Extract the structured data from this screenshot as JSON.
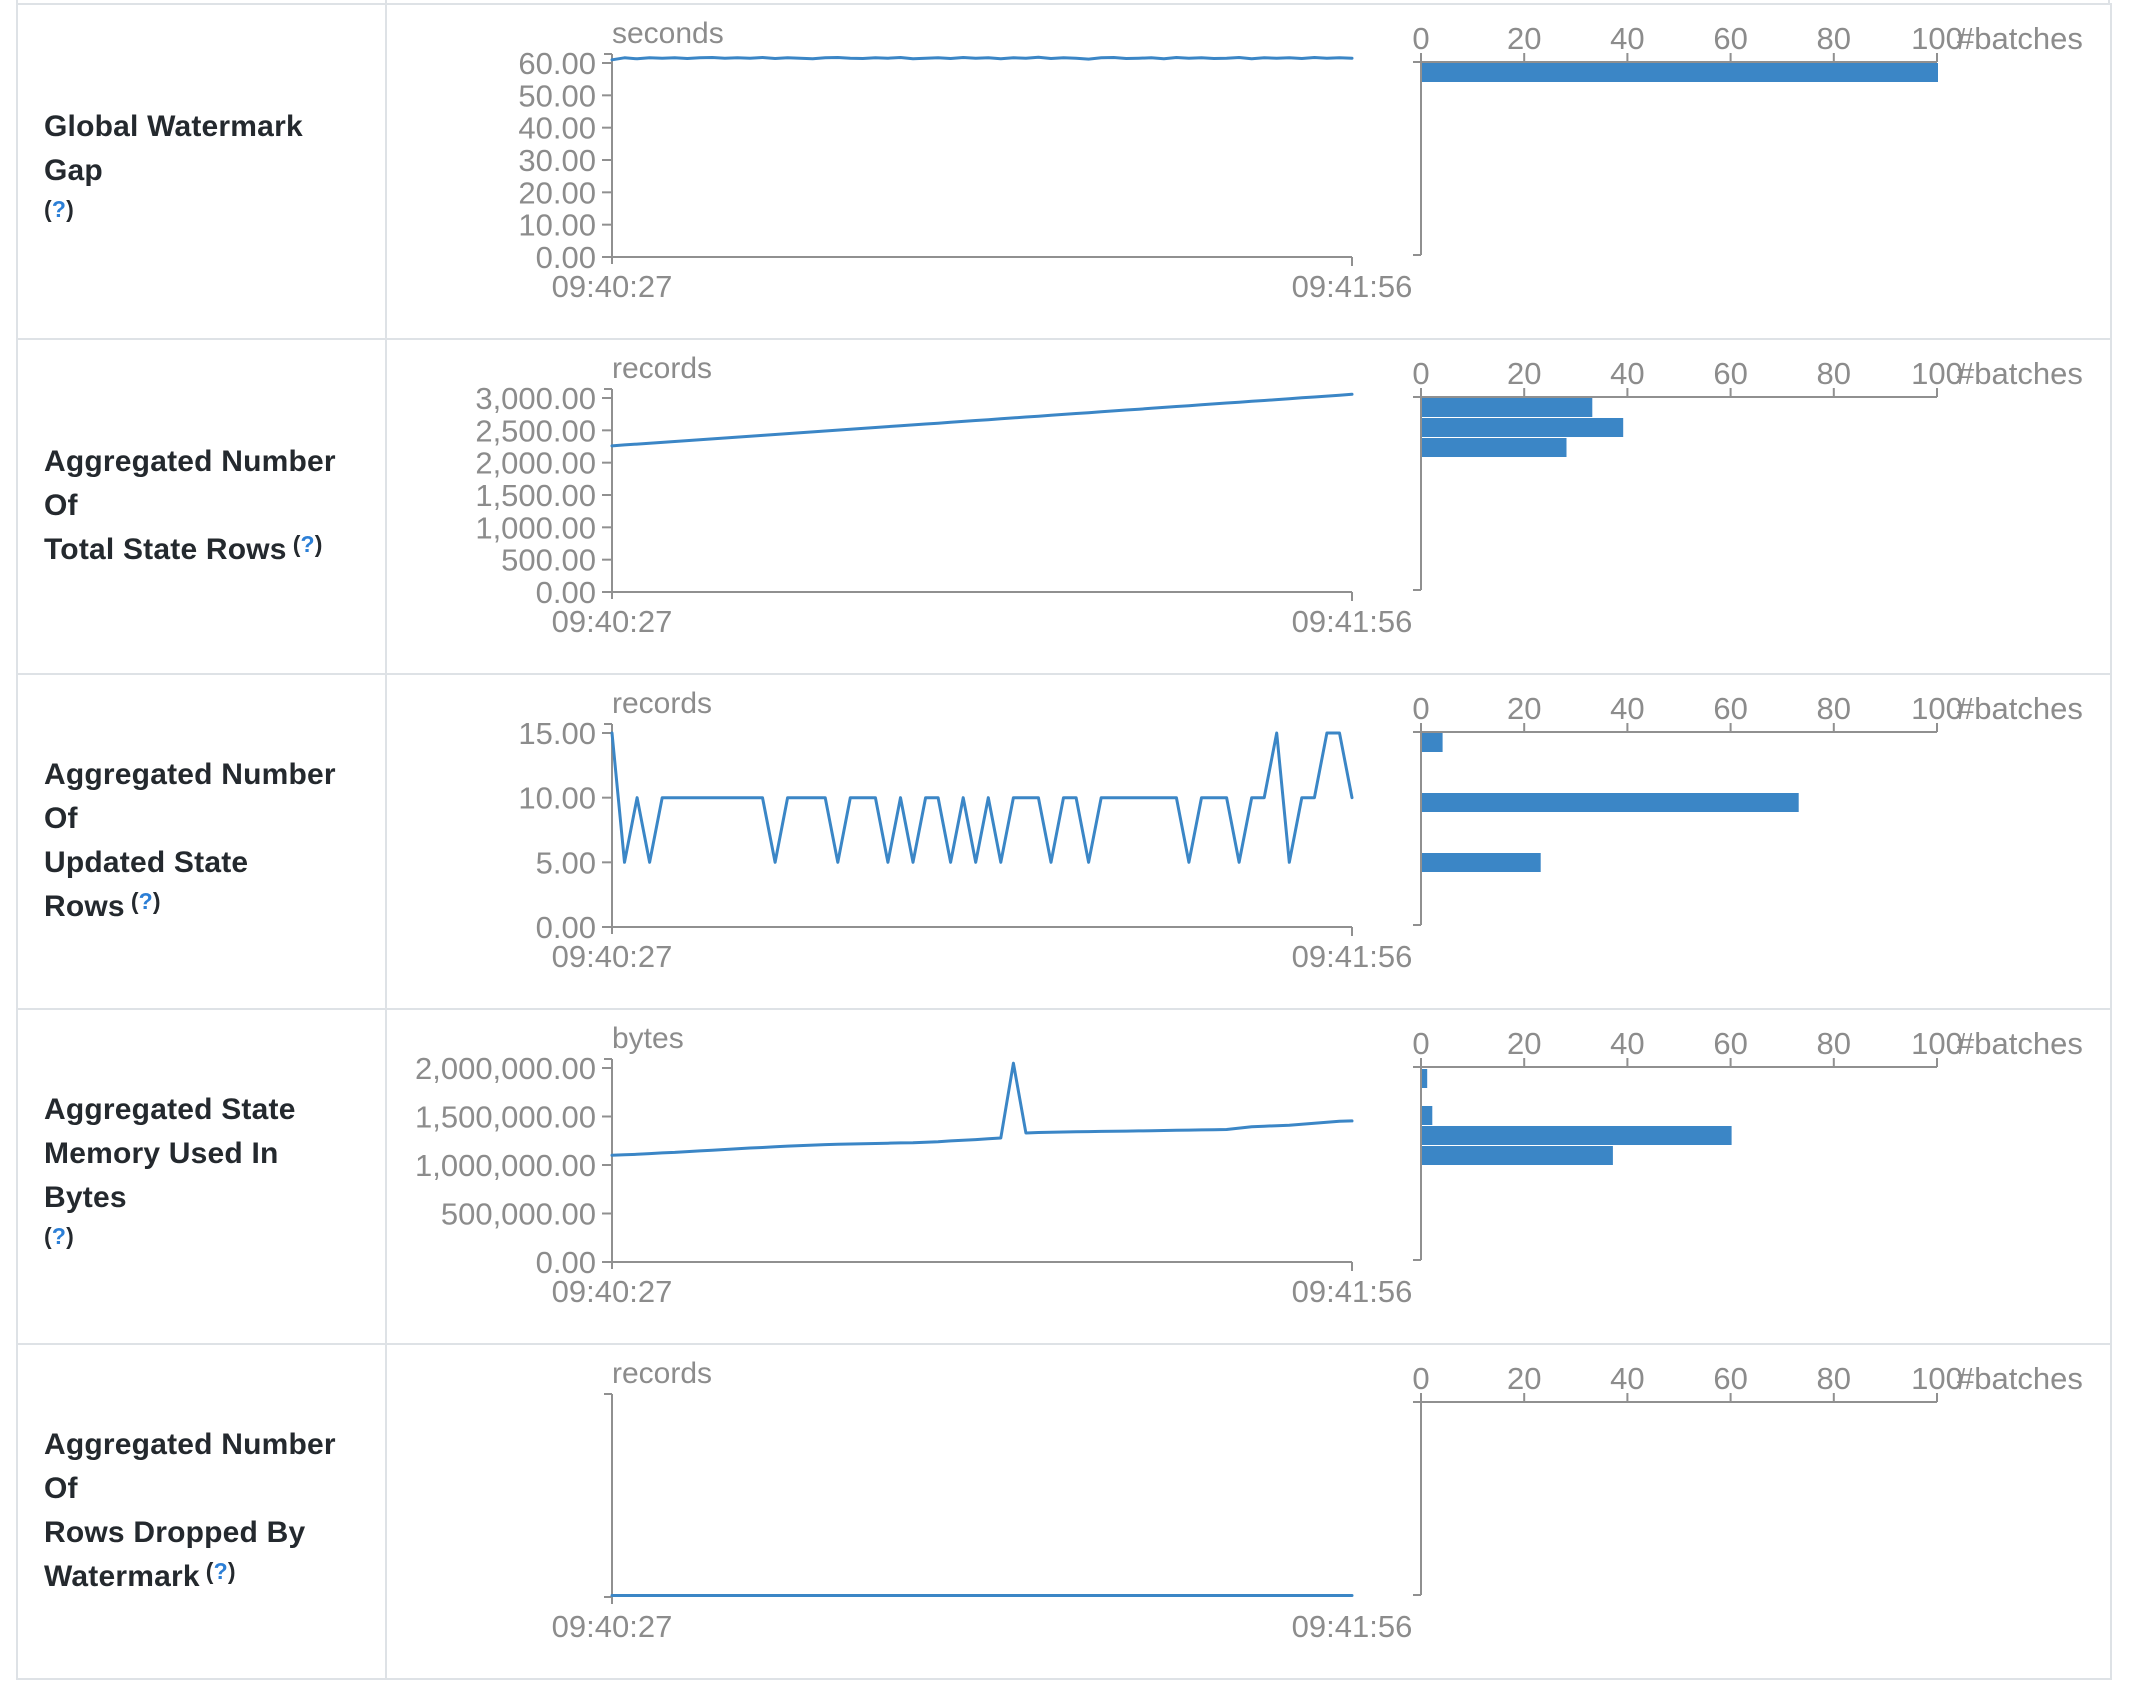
{
  "colors": {
    "accent_blue": "#3b86c6",
    "axis_gray": "#909090",
    "axis_text_gray": "#8c8c8c",
    "label_text": "#24292e",
    "help_blue": "#2c7fd6",
    "table_border": "#dee2e6"
  },
  "help_marker": {
    "open": "(",
    "question": "?",
    "close": ")"
  },
  "rows": [
    {
      "label_lines": [
        {
          "text": "Global Watermark Gap",
          "help": false
        },
        {
          "text": "",
          "help": true
        }
      ]
    },
    {
      "label_lines": [
        {
          "text": "Aggregated Number Of",
          "help": false
        },
        {
          "text": "Total State Rows",
          "help": true
        }
      ]
    },
    {
      "label_lines": [
        {
          "text": "Aggregated Number Of",
          "help": false
        },
        {
          "text": "Updated State Rows",
          "help": true
        }
      ]
    },
    {
      "label_lines": [
        {
          "text": "Aggregated State",
          "help": false
        },
        {
          "text": "Memory Used In Bytes",
          "help": false
        },
        {
          "text": "",
          "help": true
        }
      ]
    },
    {
      "label_lines": [
        {
          "text": "Aggregated Number Of",
          "help": false
        },
        {
          "text": "Rows Dropped By",
          "help": false
        },
        {
          "text": "Watermark",
          "help": true
        }
      ]
    }
  ],
  "chart_data": [
    {
      "metric": "Global Watermark Gap",
      "timeline": {
        "type": "line",
        "unit": "seconds",
        "x_range": [
          "09:40:27",
          "09:41:56"
        ],
        "tick_labels": [
          "60.00",
          "50.00",
          "40.00",
          "30.00",
          "20.00",
          "10.00",
          "0.00"
        ],
        "tick_values": [
          60,
          50,
          40,
          30,
          20,
          10,
          0
        ],
        "y_top_value": 60,
        "values": [
          61.0,
          61.6,
          61.3,
          61.6,
          61.5,
          61.6,
          61.4,
          61.6,
          61.7,
          61.5,
          61.6,
          61.5,
          61.7,
          61.4,
          61.6,
          61.5,
          61.3,
          61.6,
          61.7,
          61.5,
          61.4,
          61.6,
          61.5,
          61.7,
          61.3,
          61.5,
          61.6,
          61.4,
          61.7,
          61.5,
          61.6,
          61.3,
          61.6,
          61.5,
          61.8,
          61.4,
          61.6,
          61.5,
          61.2,
          61.6,
          61.7,
          61.4,
          61.5,
          61.6,
          61.3,
          61.7,
          61.5,
          61.6,
          61.4,
          61.5,
          61.7,
          61.3,
          61.6,
          61.5,
          61.6,
          61.4,
          61.7,
          61.5,
          61.6,
          61.5
        ]
      },
      "histogram": {
        "type": "bar",
        "orientation": "horizontal",
        "x_label": "#batches",
        "x_tick_labels": [
          "0",
          "20",
          "40",
          "60",
          "80",
          "100"
        ],
        "x_max": 100,
        "bars": [
          {
            "y_offset": 58,
            "count": 100
          }
        ]
      }
    },
    {
      "metric": "Aggregated Number Of Total State Rows",
      "timeline": {
        "type": "line",
        "unit": "records",
        "x_range": [
          "09:40:27",
          "09:41:56"
        ],
        "tick_labels": [
          "3,000.00",
          "2,500.00",
          "2,000.00",
          "1,500.00",
          "1,000.00",
          "500.00",
          "0.00"
        ],
        "tick_values": [
          3000,
          2500,
          2000,
          1500,
          1000,
          500,
          0
        ],
        "y_top_value": 3000,
        "values": [
          2260,
          2274,
          2287,
          2301,
          2314,
          2328,
          2341,
          2355,
          2368,
          2382,
          2395,
          2409,
          2422,
          2436,
          2449,
          2463,
          2476,
          2490,
          2503,
          2517,
          2530,
          2544,
          2557,
          2571,
          2584,
          2598,
          2611,
          2625,
          2638,
          2652,
          2665,
          2679,
          2692,
          2706,
          2719,
          2733,
          2746,
          2760,
          2773,
          2787,
          2800,
          2814,
          2827,
          2841,
          2854,
          2868,
          2881,
          2895,
          2908,
          2922,
          2935,
          2949,
          2962,
          2976,
          2989,
          3003,
          3016,
          3030,
          3043,
          3057
        ]
      },
      "histogram": {
        "type": "bar",
        "orientation": "horizontal",
        "x_label": "#batches",
        "x_tick_labels": [
          "0",
          "20",
          "40",
          "60",
          "80",
          "100"
        ],
        "x_max": 100,
        "bars": [
          {
            "y_offset": 58,
            "count": 33
          },
          {
            "y_offset": 78,
            "count": 39
          },
          {
            "y_offset": 98,
            "count": 28
          }
        ]
      }
    },
    {
      "metric": "Aggregated Number Of Updated State Rows",
      "timeline": {
        "type": "line",
        "unit": "records",
        "x_range": [
          "09:40:27",
          "09:41:56"
        ],
        "tick_labels": [
          "15.00",
          "10.00",
          "5.00",
          "0.00"
        ],
        "tick_values": [
          15,
          10,
          5,
          0
        ],
        "y_top_value": 15,
        "values": [
          15,
          5,
          10,
          5,
          10,
          10,
          10,
          10,
          10,
          10,
          10,
          10,
          10,
          5,
          10,
          10,
          10,
          10,
          5,
          10,
          10,
          10,
          5,
          10,
          5,
          10,
          10,
          5,
          10,
          5,
          10,
          5,
          10,
          10,
          10,
          5,
          10,
          10,
          5,
          10,
          10,
          10,
          10,
          10,
          10,
          10,
          5,
          10,
          10,
          10,
          5,
          10,
          10,
          15,
          5,
          10,
          10,
          15,
          15,
          10
        ]
      },
      "histogram": {
        "type": "bar",
        "orientation": "horizontal",
        "x_label": "#batches",
        "x_tick_labels": [
          "0",
          "20",
          "40",
          "60",
          "80",
          "100"
        ],
        "x_max": 100,
        "bars": [
          {
            "y_offset": 58,
            "count": 4
          },
          {
            "y_offset": 118,
            "count": 73
          },
          {
            "y_offset": 178,
            "count": 23
          }
        ]
      }
    },
    {
      "metric": "Aggregated State Memory Used In Bytes",
      "timeline": {
        "type": "line",
        "unit": "bytes",
        "x_range": [
          "09:40:27",
          "09:41:56"
        ],
        "tick_labels": [
          "2,000,000.00",
          "1,500,000.00",
          "1,000,000.00",
          "500,000.00",
          "0.00"
        ],
        "tick_values": [
          2000000,
          1500000,
          1000000,
          500000,
          0
        ],
        "y_top_value": 2000000,
        "values": [
          1100000,
          1105000,
          1110000,
          1118000,
          1125000,
          1130000,
          1138000,
          1145000,
          1152000,
          1160000,
          1168000,
          1175000,
          1180000,
          1188000,
          1195000,
          1200000,
          1205000,
          1210000,
          1213000,
          1216000,
          1220000,
          1222000,
          1225000,
          1228000,
          1230000,
          1235000,
          1240000,
          1248000,
          1255000,
          1262000,
          1270000,
          1278000,
          2050000,
          1330000,
          1335000,
          1338000,
          1340000,
          1342000,
          1344000,
          1346000,
          1348000,
          1350000,
          1352000,
          1354000,
          1356000,
          1358000,
          1360000,
          1362000,
          1364000,
          1366000,
          1380000,
          1395000,
          1400000,
          1405000,
          1410000,
          1420000,
          1430000,
          1440000,
          1450000,
          1455000
        ]
      },
      "histogram": {
        "type": "bar",
        "orientation": "horizontal",
        "x_label": "#batches",
        "x_tick_labels": [
          "0",
          "20",
          "40",
          "60",
          "80",
          "100"
        ],
        "x_max": 100,
        "bars": [
          {
            "y_offset": 59,
            "count": 1
          },
          {
            "y_offset": 96,
            "count": 2
          },
          {
            "y_offset": 116,
            "count": 60
          },
          {
            "y_offset": 136,
            "count": 37
          }
        ]
      }
    },
    {
      "metric": "Aggregated Number Of Rows Dropped By Watermark",
      "timeline": {
        "type": "line",
        "unit": "records",
        "x_range": [
          "09:40:27",
          "09:41:56"
        ],
        "tick_labels": [],
        "tick_values": [],
        "y_top_value": null,
        "values": [
          0,
          0
        ]
      },
      "histogram": {
        "type": "bar",
        "orientation": "horizontal",
        "x_label": "#batches",
        "x_tick_labels": [
          "0",
          "20",
          "40",
          "60",
          "80",
          "100"
        ],
        "x_max": 100,
        "bars": []
      }
    }
  ]
}
